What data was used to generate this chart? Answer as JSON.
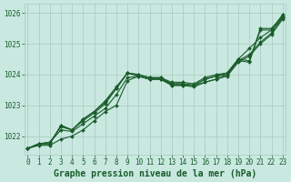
{
  "xlabel": "Graphe pression niveau de la mer (hPa)",
  "xlim": [
    -0.3,
    23.3
  ],
  "ylim": [
    1021.4,
    1026.3
  ],
  "yticks": [
    1022,
    1023,
    1024,
    1025,
    1026
  ],
  "xticks": [
    0,
    1,
    2,
    3,
    4,
    5,
    6,
    7,
    8,
    9,
    10,
    11,
    12,
    13,
    14,
    15,
    16,
    17,
    18,
    19,
    20,
    21,
    22,
    23
  ],
  "bg_color": "#c8e8e0",
  "line_color": "#1a5c2a",
  "grid_color": "#a8c8c0",
  "series": [
    [
      1021.6,
      1021.7,
      1021.7,
      1021.9,
      1022.0,
      1022.2,
      1022.5,
      1022.8,
      1023.0,
      1023.8,
      1023.95,
      1023.85,
      1023.85,
      1023.65,
      1023.65,
      1023.65,
      1023.75,
      1023.85,
      1024.0,
      1024.45,
      1024.65,
      1025.05,
      1025.35,
      1025.85
    ],
    [
      1021.6,
      1021.75,
      1021.75,
      1022.35,
      1022.2,
      1022.55,
      1022.8,
      1023.1,
      1023.55,
      1024.05,
      1024.0,
      1023.9,
      1023.9,
      1023.7,
      1023.7,
      1023.65,
      1023.85,
      1023.95,
      1024.0,
      1024.45,
      1024.4,
      1025.45,
      1025.45,
      1025.85
    ],
    [
      1021.6,
      1021.75,
      1021.75,
      1022.35,
      1022.2,
      1022.55,
      1022.8,
      1023.15,
      1023.6,
      1024.05,
      1024.0,
      1023.9,
      1023.9,
      1023.75,
      1023.75,
      1023.7,
      1023.9,
      1024.0,
      1024.05,
      1024.5,
      1024.45,
      1025.5,
      1025.5,
      1025.9
    ],
    [
      1021.6,
      1021.75,
      1021.8,
      1022.3,
      1022.2,
      1022.5,
      1022.75,
      1023.05,
      1023.55,
      1024.05,
      1023.95,
      1023.85,
      1023.85,
      1023.7,
      1023.7,
      1023.65,
      1023.85,
      1023.95,
      1024.05,
      1024.5,
      1024.85,
      1025.2,
      1025.45,
      1025.95
    ],
    [
      1021.6,
      1021.75,
      1021.8,
      1022.2,
      1022.15,
      1022.4,
      1022.65,
      1022.9,
      1023.35,
      1023.9,
      1023.95,
      1023.85,
      1023.85,
      1023.65,
      1023.65,
      1023.6,
      1023.75,
      1023.85,
      1023.95,
      1024.4,
      1024.6,
      1025.0,
      1025.3,
      1025.8
    ]
  ],
  "tick_fontsize": 5.5,
  "label_fontsize": 7.0,
  "marker": "D",
  "marker_size": 2.0,
  "linewidth": 0.8
}
